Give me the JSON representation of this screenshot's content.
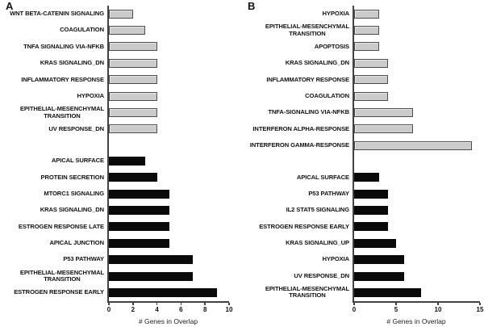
{
  "chart_data": [
    {
      "panel_label": "A",
      "type": "bar",
      "orientation": "horizontal",
      "xlabel": "# Genes in Overlap",
      "xlim": [
        0,
        10
      ],
      "xticks": [
        0,
        2,
        4,
        6,
        8,
        10
      ],
      "grid": false,
      "legend": "none",
      "groups": [
        {
          "name": "gray-bars",
          "bar_color": "#cbcbcb",
          "border_color": "#4d4d4d",
          "items": [
            {
              "label": "WNT BETA-CATENIN SIGNALING",
              "value": 2
            },
            {
              "label": "COAGULATION",
              "value": 3
            },
            {
              "label": "TNFA SIGNALING VIA-NFKB",
              "value": 4
            },
            {
              "label": "KRAS SIGNALING_DN",
              "value": 4
            },
            {
              "label": "INFLAMMATORY RESPONSE",
              "value": 4
            },
            {
              "label": "HYPOXIA",
              "value": 4
            },
            {
              "label": "EPITHELIAL-MESENCHYMAL\nTRANSITION",
              "value": 4
            },
            {
              "label": "UV RESPONSE_DN",
              "value": 4
            }
          ]
        },
        {
          "name": "black-bars",
          "bar_color": "#0a0a0a",
          "border_color": "#0a0a0a",
          "items": [
            {
              "label": "APICAL SURFACE",
              "value": 3
            },
            {
              "label": "PROTEIN SECRETION",
              "value": 4
            },
            {
              "label": "MTORC1 SIGNALING",
              "value": 5
            },
            {
              "label": "KRAS SIGNALING_DN",
              "value": 5
            },
            {
              "label": "ESTROGEN RESPONSE LATE",
              "value": 5
            },
            {
              "label": "APICAL JUNCTION",
              "value": 5
            },
            {
              "label": "P53 PATHWAY",
              "value": 7
            },
            {
              "label": "EPITHELIAL-MESENCHYMAL\nTRANSITION",
              "value": 7
            },
            {
              "label": "ESTROGEN RESPONSE EARLY",
              "value": 9
            }
          ]
        }
      ]
    },
    {
      "panel_label": "B",
      "type": "bar",
      "orientation": "horizontal",
      "xlabel": "# Genes in Overlap",
      "xlim": [
        0,
        15
      ],
      "xticks": [
        0,
        5,
        10,
        15
      ],
      "grid": false,
      "legend": "none",
      "groups": [
        {
          "name": "gray-bars",
          "bar_color": "#cbcbcb",
          "border_color": "#4d4d4d",
          "items": [
            {
              "label": "HYPOXIA",
              "value": 3
            },
            {
              "label": "EPITHELIAL-MESENCHYMAL\nTRANSITION",
              "value": 3
            },
            {
              "label": "APOPTOSIS",
              "value": 3
            },
            {
              "label": "KRAS SIGNALING_DN",
              "value": 4
            },
            {
              "label": "INFLAMMATORY RESPONSE",
              "value": 4
            },
            {
              "label": "COAGULATION",
              "value": 4
            },
            {
              "label": "TNFA-SIGNALING VIA-NFKB",
              "value": 7
            },
            {
              "label": "INTERFERON ALPHA-RESPONSE",
              "value": 7
            },
            {
              "label": "INTERFERON GAMMA-RESPONSE",
              "value": 14
            }
          ]
        },
        {
          "name": "black-bars",
          "bar_color": "#0a0a0a",
          "border_color": "#0a0a0a",
          "items": [
            {
              "label": "APICAL SURFACE",
              "value": 3
            },
            {
              "label": "P53 PATHWAY",
              "value": 4
            },
            {
              "label": "IL2 STAT5 SIGNALING",
              "value": 4
            },
            {
              "label": "ESTROGEN RESPONSE EARLY",
              "value": 4
            },
            {
              "label": "KRAS SIGNALING_UP",
              "value": 5
            },
            {
              "label": "HYPOXIA",
              "value": 6
            },
            {
              "label": "UV RESPONSE_DN",
              "value": 6
            },
            {
              "label": "EPITHELIAL-MESENCHYMAL\nTRANSITION",
              "value": 8
            }
          ]
        }
      ]
    }
  ]
}
